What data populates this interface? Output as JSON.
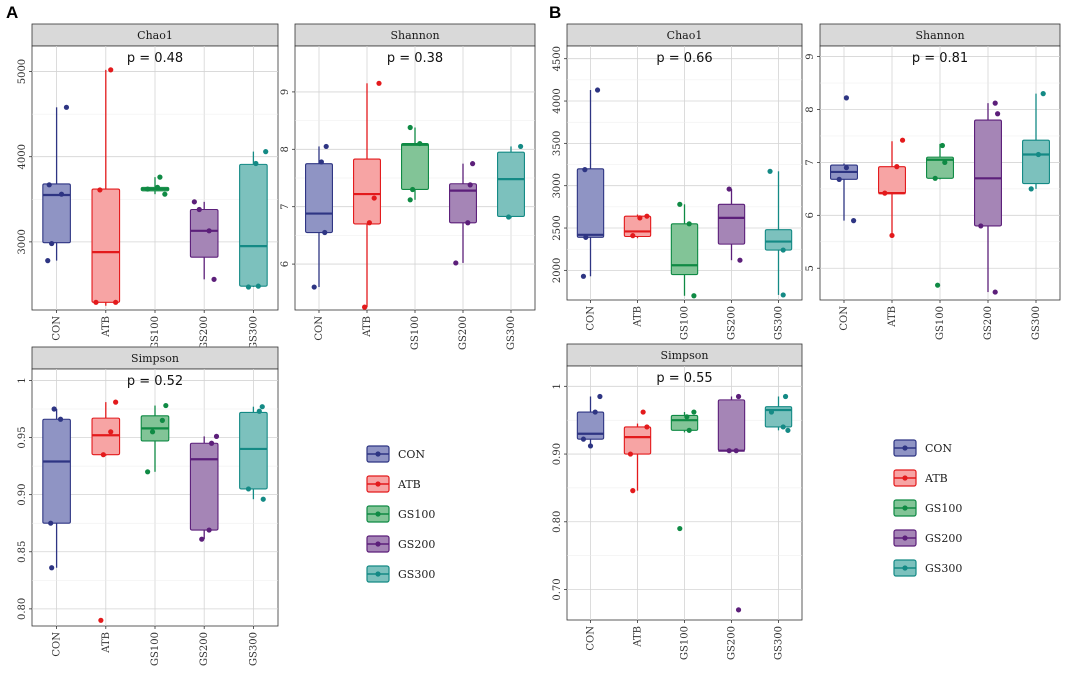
{
  "figure_labels": {
    "a": "A",
    "b": "B"
  },
  "groups": [
    "CON",
    "ATB",
    "GS100",
    "GS200",
    "GS300"
  ],
  "colors": {
    "CON": {
      "fill": "#8f94c4",
      "line": "#2e3583"
    },
    "ATB": {
      "fill": "#f7a4a4",
      "line": "#e31a1c"
    },
    "GS100": {
      "fill": "#82c497",
      "line": "#0f8a44"
    },
    "GS200": {
      "fill": "#a585b6",
      "line": "#5c1f7a"
    },
    "GS300": {
      "fill": "#7cc1bd",
      "line": "#148a85"
    }
  },
  "legend": {
    "a": [
      "CON",
      "ATB",
      "GS100",
      "GS200",
      "GS300"
    ],
    "b": [
      "CON",
      "ATB",
      "GS100",
      "GS200",
      "GS300"
    ]
  },
  "chart_data": [
    {
      "id": "A-chao1",
      "type": "box",
      "title": "Chao1",
      "pvalue": "p = 0.48",
      "ylim": [
        2200,
        5300
      ],
      "yticks": [
        3000,
        4000,
        5000
      ],
      "boxes": [
        {
          "group": "CON",
          "min": 2780,
          "q1": 2990,
          "median": 3550,
          "q3": 3680,
          "max": 4580
        },
        {
          "group": "ATB",
          "min": 2250,
          "q1": 2290,
          "median": 2880,
          "q3": 3620,
          "max": 5020
        },
        {
          "group": "GS100",
          "min": 3560,
          "q1": 3600,
          "median": 3620,
          "q3": 3640,
          "max": 3760
        },
        {
          "group": "GS200",
          "min": 2560,
          "q1": 2820,
          "median": 3130,
          "q3": 3380,
          "max": 3470
        },
        {
          "group": "GS300",
          "min": 2470,
          "q1": 2480,
          "median": 2950,
          "q3": 3910,
          "max": 4060
        }
      ],
      "points": [
        {
          "group": "CON",
          "jitter": -0.18,
          "y": 2780
        },
        {
          "group": "CON",
          "jitter": -0.1,
          "y": 2980
        },
        {
          "group": "CON",
          "jitter": 0.1,
          "y": 3560
        },
        {
          "group": "CON",
          "jitter": -0.15,
          "y": 3670
        },
        {
          "group": "CON",
          "jitter": 0.2,
          "y": 4580
        },
        {
          "group": "ATB",
          "jitter": -0.2,
          "y": 2290
        },
        {
          "group": "ATB",
          "jitter": 0.2,
          "y": 2290
        },
        {
          "group": "ATB",
          "jitter": -0.12,
          "y": 3610
        },
        {
          "group": "ATB",
          "jitter": 0.1,
          "y": 5020
        },
        {
          "group": "GS100",
          "jitter": -0.15,
          "y": 3620
        },
        {
          "group": "GS100",
          "jitter": 0.05,
          "y": 3640
        },
        {
          "group": "GS100",
          "jitter": 0.2,
          "y": 3560
        },
        {
          "group": "GS100",
          "jitter": 0.1,
          "y": 3760
        },
        {
          "group": "GS200",
          "jitter": -0.2,
          "y": 3470
        },
        {
          "group": "GS200",
          "jitter": -0.1,
          "y": 3380
        },
        {
          "group": "GS200",
          "jitter": 0.1,
          "y": 3130
        },
        {
          "group": "GS200",
          "jitter": 0.2,
          "y": 2560
        },
        {
          "group": "GS300",
          "jitter": -0.1,
          "y": 2470
        },
        {
          "group": "GS300",
          "jitter": 0.1,
          "y": 2480
        },
        {
          "group": "GS300",
          "jitter": 0.05,
          "y": 3920
        },
        {
          "group": "GS300",
          "jitter": 0.25,
          "y": 4060
        }
      ]
    },
    {
      "id": "A-shannon",
      "type": "box",
      "title": "Shannon",
      "pvalue": "p = 0.38",
      "ylim": [
        5.2,
        9.8
      ],
      "yticks": [
        6,
        7,
        8,
        9
      ],
      "boxes": [
        {
          "group": "CON",
          "min": 5.6,
          "q1": 6.55,
          "median": 6.88,
          "q3": 7.75,
          "max": 8.05
        },
        {
          "group": "ATB",
          "min": 5.25,
          "q1": 6.7,
          "median": 7.22,
          "q3": 7.83,
          "max": 9.15
        },
        {
          "group": "GS100",
          "min": 7.12,
          "q1": 7.3,
          "median": 8.08,
          "q3": 8.1,
          "max": 8.38
        },
        {
          "group": "GS200",
          "min": 6.02,
          "q1": 6.72,
          "median": 7.28,
          "q3": 7.4,
          "max": 7.75
        },
        {
          "group": "GS300",
          "min": 6.8,
          "q1": 6.83,
          "median": 7.48,
          "q3": 7.95,
          "max": 8.05
        }
      ],
      "points": [
        {
          "group": "CON",
          "jitter": -0.1,
          "y": 5.6
        },
        {
          "group": "CON",
          "jitter": 0.12,
          "y": 6.55
        },
        {
          "group": "CON",
          "jitter": 0.05,
          "y": 7.78
        },
        {
          "group": "CON",
          "jitter": 0.15,
          "y": 8.05
        },
        {
          "group": "ATB",
          "jitter": -0.05,
          "y": 5.25
        },
        {
          "group": "ATB",
          "jitter": 0.05,
          "y": 6.72
        },
        {
          "group": "ATB",
          "jitter": 0.15,
          "y": 7.15
        },
        {
          "group": "ATB",
          "jitter": 0.25,
          "y": 9.15
        },
        {
          "group": "GS100",
          "jitter": -0.1,
          "y": 7.12
        },
        {
          "group": "GS100",
          "jitter": -0.05,
          "y": 7.3
        },
        {
          "group": "GS100",
          "jitter": 0.1,
          "y": 8.1
        },
        {
          "group": "GS100",
          "jitter": -0.1,
          "y": 8.38
        },
        {
          "group": "GS200",
          "jitter": -0.15,
          "y": 6.02
        },
        {
          "group": "GS200",
          "jitter": 0.1,
          "y": 6.72
        },
        {
          "group": "GS200",
          "jitter": 0.15,
          "y": 7.38
        },
        {
          "group": "GS200",
          "jitter": 0.2,
          "y": 7.75
        },
        {
          "group": "GS300",
          "jitter": -0.05,
          "y": 6.82
        },
        {
          "group": "GS300",
          "jitter": 0.2,
          "y": 8.05
        }
      ]
    },
    {
      "id": "A-simpson",
      "type": "box",
      "title": "Simpson",
      "pvalue": "p = 0.52",
      "ylim": [
        0.785,
        1.01
      ],
      "yticks": [
        0.8,
        0.85,
        0.9,
        0.95,
        1.0
      ],
      "boxes": [
        {
          "group": "CON",
          "min": 0.836,
          "q1": 0.875,
          "median": 0.929,
          "q3": 0.966,
          "max": 0.975
        },
        {
          "group": "ATB",
          "min": 0.934,
          "q1": 0.935,
          "median": 0.952,
          "q3": 0.967,
          "max": 0.981
        },
        {
          "group": "GS100",
          "min": 0.92,
          "q1": 0.947,
          "median": 0.958,
          "q3": 0.969,
          "max": 0.978
        },
        {
          "group": "GS200",
          "min": 0.861,
          "q1": 0.869,
          "median": 0.931,
          "q3": 0.945,
          "max": 0.951
        },
        {
          "group": "GS300",
          "min": 0.896,
          "q1": 0.905,
          "median": 0.94,
          "q3": 0.972,
          "max": 0.977
        }
      ],
      "points": [
        {
          "group": "CON",
          "jitter": -0.1,
          "y": 0.836
        },
        {
          "group": "CON",
          "jitter": -0.12,
          "y": 0.875
        },
        {
          "group": "CON",
          "jitter": 0.08,
          "y": 0.966
        },
        {
          "group": "CON",
          "jitter": -0.05,
          "y": 0.975
        },
        {
          "group": "ATB",
          "jitter": -0.1,
          "y": 0.79
        },
        {
          "group": "ATB",
          "jitter": -0.05,
          "y": 0.935
        },
        {
          "group": "ATB",
          "jitter": 0.1,
          "y": 0.955
        },
        {
          "group": "ATB",
          "jitter": 0.2,
          "y": 0.981
        },
        {
          "group": "GS100",
          "jitter": -0.15,
          "y": 0.92
        },
        {
          "group": "GS100",
          "jitter": -0.05,
          "y": 0.955
        },
        {
          "group": "GS100",
          "jitter": 0.15,
          "y": 0.965
        },
        {
          "group": "GS100",
          "jitter": 0.22,
          "y": 0.978
        },
        {
          "group": "GS200",
          "jitter": -0.05,
          "y": 0.861
        },
        {
          "group": "GS200",
          "jitter": 0.1,
          "y": 0.869
        },
        {
          "group": "GS200",
          "jitter": 0.15,
          "y": 0.945
        },
        {
          "group": "GS200",
          "jitter": 0.25,
          "y": 0.951
        },
        {
          "group": "GS300",
          "jitter": -0.1,
          "y": 0.905
        },
        {
          "group": "GS300",
          "jitter": 0.2,
          "y": 0.896
        },
        {
          "group": "GS300",
          "jitter": 0.12,
          "y": 0.973
        },
        {
          "group": "GS300",
          "jitter": 0.18,
          "y": 0.977
        }
      ]
    },
    {
      "id": "B-chao1",
      "type": "box",
      "title": "Chao1",
      "pvalue": "p = 0.66",
      "ylim": [
        1650,
        4650
      ],
      "yticks": [
        2000,
        2500,
        3000,
        3500,
        4000,
        4500
      ],
      "boxes": [
        {
          "group": "CON",
          "min": 1930,
          "q1": 2390,
          "median": 2420,
          "q3": 3200,
          "max": 4130
        },
        {
          "group": "ATB",
          "min": 2380,
          "q1": 2400,
          "median": 2460,
          "q3": 2640,
          "max": 2660
        },
        {
          "group": "GS100",
          "min": 1700,
          "q1": 1950,
          "median": 2060,
          "q3": 2550,
          "max": 2780
        },
        {
          "group": "GS200",
          "min": 2120,
          "q1": 2310,
          "median": 2620,
          "q3": 2780,
          "max": 2960
        },
        {
          "group": "GS300",
          "min": 1710,
          "q1": 2240,
          "median": 2340,
          "q3": 2480,
          "max": 3170
        }
      ],
      "points": [
        {
          "group": "CON",
          "jitter": -0.15,
          "y": 1930
        },
        {
          "group": "CON",
          "jitter": -0.1,
          "y": 2390
        },
        {
          "group": "CON",
          "jitter": -0.12,
          "y": 3190
        },
        {
          "group": "CON",
          "jitter": 0.15,
          "y": 4130
        },
        {
          "group": "ATB",
          "jitter": -0.1,
          "y": 2410
        },
        {
          "group": "ATB",
          "jitter": 0.05,
          "y": 2620
        },
        {
          "group": "ATB",
          "jitter": 0.2,
          "y": 2640
        },
        {
          "group": "GS100",
          "jitter": -0.1,
          "y": 2780
        },
        {
          "group": "GS100",
          "jitter": 0.1,
          "y": 2550
        },
        {
          "group": "GS100",
          "jitter": 0.2,
          "y": 1700
        },
        {
          "group": "GS200",
          "jitter": -0.05,
          "y": 2960
        },
        {
          "group": "GS200",
          "jitter": 0.18,
          "y": 2120
        },
        {
          "group": "GS300",
          "jitter": -0.18,
          "y": 3170
        },
        {
          "group": "GS300",
          "jitter": 0.1,
          "y": 2240
        },
        {
          "group": "GS300",
          "jitter": 0.1,
          "y": 1710
        }
      ]
    },
    {
      "id": "B-shannon",
      "type": "box",
      "title": "Shannon",
      "pvalue": "p = 0.81",
      "ylim": [
        4.4,
        9.2
      ],
      "yticks": [
        5,
        6,
        7,
        8,
        9
      ],
      "boxes": [
        {
          "group": "CON",
          "min": 5.9,
          "q1": 6.68,
          "median": 6.82,
          "q3": 6.95,
          "max": 6.98
        },
        {
          "group": "ATB",
          "min": 5.62,
          "q1": 6.41,
          "median": 6.42,
          "q3": 6.92,
          "max": 7.4
        },
        {
          "group": "GS100",
          "min": 6.68,
          "q1": 6.7,
          "median": 7.05,
          "q3": 7.1,
          "max": 7.35
        },
        {
          "group": "GS200",
          "min": 4.55,
          "q1": 5.8,
          "median": 6.7,
          "q3": 7.8,
          "max": 8.12
        },
        {
          "group": "GS300",
          "min": 6.5,
          "q1": 6.6,
          "median": 7.15,
          "q3": 7.42,
          "max": 8.3
        }
      ],
      "points": [
        {
          "group": "CON",
          "jitter": -0.1,
          "y": 6.68
        },
        {
          "group": "CON",
          "jitter": 0.05,
          "y": 6.9
        },
        {
          "group": "CON",
          "jitter": 0.2,
          "y": 5.9
        },
        {
          "group": "CON",
          "jitter": 0.05,
          "y": 8.22
        },
        {
          "group": "ATB",
          "jitter": -0.15,
          "y": 6.42
        },
        {
          "group": "ATB",
          "jitter": 0.0,
          "y": 5.62
        },
        {
          "group": "ATB",
          "jitter": 0.1,
          "y": 6.92
        },
        {
          "group": "ATB",
          "jitter": 0.22,
          "y": 7.42
        },
        {
          "group": "GS100",
          "jitter": -0.1,
          "y": 6.7
        },
        {
          "group": "GS100",
          "jitter": -0.05,
          "y": 4.68
        },
        {
          "group": "GS100",
          "jitter": 0.05,
          "y": 7.32
        },
        {
          "group": "GS100",
          "jitter": 0.1,
          "y": 7.0
        },
        {
          "group": "GS200",
          "jitter": -0.15,
          "y": 5.8
        },
        {
          "group": "GS200",
          "jitter": 0.15,
          "y": 4.55
        },
        {
          "group": "GS200",
          "jitter": 0.2,
          "y": 7.92
        },
        {
          "group": "GS200",
          "jitter": 0.15,
          "y": 8.12
        },
        {
          "group": "GS300",
          "jitter": -0.1,
          "y": 6.5
        },
        {
          "group": "GS300",
          "jitter": 0.05,
          "y": 7.15
        },
        {
          "group": "GS300",
          "jitter": 0.15,
          "y": 8.3
        }
      ]
    },
    {
      "id": "B-simpson",
      "type": "box",
      "title": "Simpson",
      "pvalue": "p = 0.55",
      "ylim": [
        0.655,
        1.03
      ],
      "yticks": [
        0.7,
        0.8,
        0.9,
        1.0
      ],
      "boxes": [
        {
          "group": "CON",
          "min": 0.912,
          "q1": 0.922,
          "median": 0.93,
          "q3": 0.962,
          "max": 0.985
        },
        {
          "group": "ATB",
          "min": 0.846,
          "q1": 0.9,
          "median": 0.925,
          "q3": 0.94,
          "max": 0.945
        },
        {
          "group": "GS100",
          "min": 0.932,
          "q1": 0.935,
          "median": 0.95,
          "q3": 0.957,
          "max": 0.962
        },
        {
          "group": "GS200",
          "min": 0.905,
          "q1": 0.905,
          "median": 0.905,
          "q3": 0.98,
          "max": 0.985
        },
        {
          "group": "GS300",
          "min": 0.935,
          "q1": 0.94,
          "median": 0.965,
          "q3": 0.97,
          "max": 0.985
        }
      ],
      "points": [
        {
          "group": "CON",
          "jitter": -0.15,
          "y": 0.922
        },
        {
          "group": "CON",
          "jitter": 0.0,
          "y": 0.912
        },
        {
          "group": "CON",
          "jitter": 0.1,
          "y": 0.962
        },
        {
          "group": "CON",
          "jitter": 0.2,
          "y": 0.985
        },
        {
          "group": "ATB",
          "jitter": -0.1,
          "y": 0.846
        },
        {
          "group": "ATB",
          "jitter": -0.15,
          "y": 0.9
        },
        {
          "group": "ATB",
          "jitter": 0.12,
          "y": 0.962
        },
        {
          "group": "ATB",
          "jitter": 0.2,
          "y": 0.94
        },
        {
          "group": "GS100",
          "jitter": -0.1,
          "y": 0.79
        },
        {
          "group": "GS100",
          "jitter": 0.1,
          "y": 0.935
        },
        {
          "group": "GS100",
          "jitter": 0.2,
          "y": 0.962
        },
        {
          "group": "GS100",
          "jitter": 0.05,
          "y": 0.955
        },
        {
          "group": "GS200",
          "jitter": 0.15,
          "y": 0.67
        },
        {
          "group": "GS200",
          "jitter": -0.05,
          "y": 0.905
        },
        {
          "group": "GS200",
          "jitter": 0.1,
          "y": 0.905
        },
        {
          "group": "GS200",
          "jitter": 0.15,
          "y": 0.985
        },
        {
          "group": "GS300",
          "jitter": -0.15,
          "y": 0.962
        },
        {
          "group": "GS300",
          "jitter": 0.1,
          "y": 0.94
        },
        {
          "group": "GS300",
          "jitter": 0.15,
          "y": 0.985
        },
        {
          "group": "GS300",
          "jitter": 0.2,
          "y": 0.935
        }
      ]
    }
  ]
}
